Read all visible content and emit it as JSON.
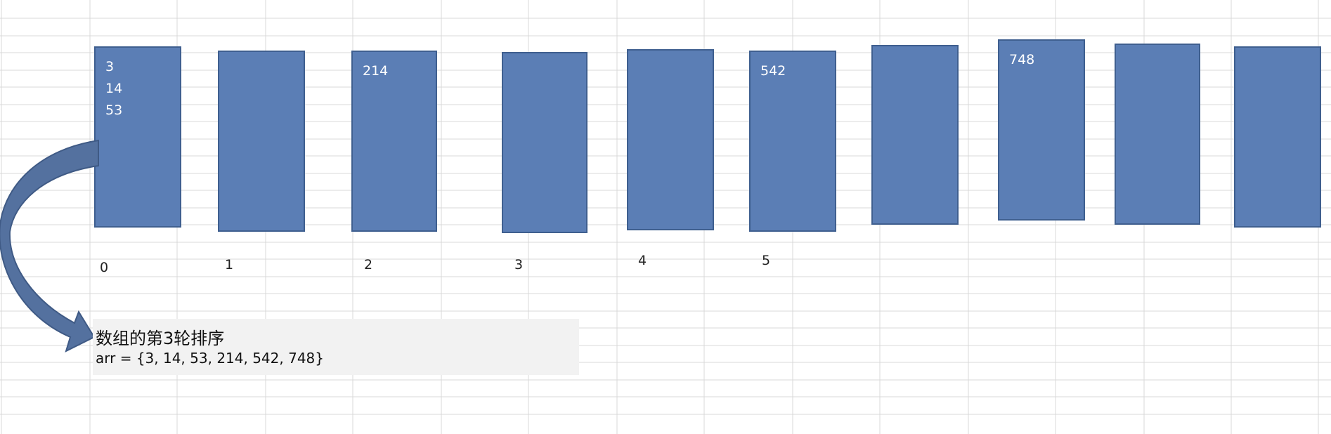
{
  "colors": {
    "bucket_fill": "#5b7eb5",
    "bucket_border": "#3f5f8f",
    "arrow_fill": "#54719f",
    "grid_line": "#d9d9d9",
    "caption_background": "#f2f2f2"
  },
  "buckets": [
    {
      "values": [
        "3",
        "14",
        "53"
      ]
    },
    {
      "values": []
    },
    {
      "values": [
        "214"
      ]
    },
    {
      "values": []
    },
    {
      "values": []
    },
    {
      "values": [
        "542"
      ]
    },
    {
      "values": []
    },
    {
      "values": [
        "748"
      ]
    },
    {
      "values": []
    },
    {
      "values": []
    }
  ],
  "bucket_indices": [
    "0",
    "1",
    "2",
    "3",
    "4",
    "5"
  ],
  "caption": {
    "title": "数组的第3轮排序",
    "array_text": "arr = {3, 14, 53, 214, 542, 748}"
  },
  "arrow_icon": "curved-arrow-icon"
}
